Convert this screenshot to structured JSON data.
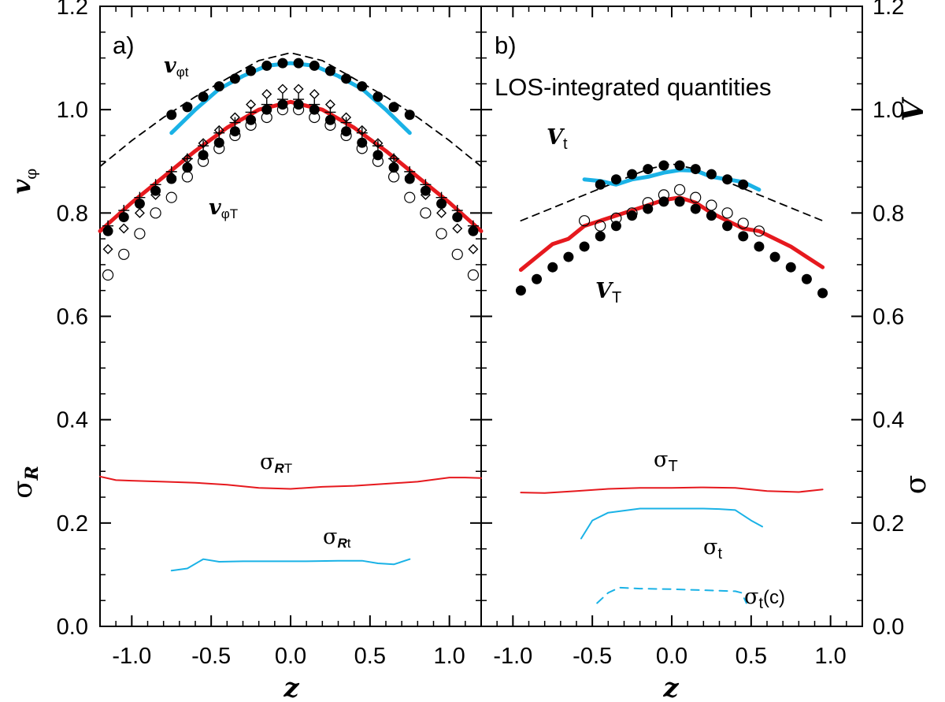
{
  "chart_data": [
    {
      "panel": "a)",
      "type": "line",
      "title": "",
      "xlabel": "z",
      "ylabel_top": "vφ",
      "ylabel_bottom": "σR",
      "xlim": [
        -1.2,
        1.2
      ],
      "ylim": [
        0.0,
        1.2
      ],
      "x_ticks": [
        "-1.0",
        "-0.5",
        "0.0",
        "0.5",
        "1.0"
      ],
      "x_tick_values": [
        -1.0,
        -0.5,
        0.0,
        0.5,
        1.0
      ],
      "y_ticks": [
        "0.0",
        "0.2",
        "0.4",
        "0.6",
        "0.8",
        "1.0",
        "1.2"
      ],
      "y_tick_values": [
        0.0,
        0.2,
        0.4,
        0.6,
        0.8,
        1.0,
        1.2
      ],
      "series": [
        {
          "name": "vφt model (dashed)",
          "color": "#000000",
          "style": "dashed",
          "x": [
            -1.2,
            -1.0,
            -0.8,
            -0.6,
            -0.4,
            -0.2,
            0.0,
            0.2,
            0.4,
            0.6,
            0.8,
            1.0,
            1.2
          ],
          "y": [
            0.89,
            0.94,
            0.985,
            1.025,
            1.06,
            1.095,
            1.11,
            1.095,
            1.06,
            1.025,
            0.985,
            0.94,
            0.89
          ]
        },
        {
          "name": "vφt",
          "color": "#1ab2e6",
          "style": "thick",
          "x": [
            -0.75,
            -0.6,
            -0.45,
            -0.3,
            -0.15,
            0.0,
            0.15,
            0.3,
            0.45,
            0.6,
            0.75
          ],
          "y": [
            0.955,
            1.0,
            1.04,
            1.065,
            1.085,
            1.09,
            1.085,
            1.065,
            1.04,
            1.0,
            0.955
          ]
        },
        {
          "name": "vφt filled",
          "color": "#000000",
          "style": "filled-circles",
          "x": [
            -0.75,
            -0.65,
            -0.55,
            -0.45,
            -0.35,
            -0.25,
            -0.15,
            -0.05,
            0.05,
            0.15,
            0.25,
            0.35,
            0.45,
            0.55,
            0.65,
            0.75
          ],
          "y": [
            0.99,
            1.005,
            1.025,
            1.045,
            1.06,
            1.075,
            1.085,
            1.09,
            1.09,
            1.085,
            1.075,
            1.06,
            1.045,
            1.025,
            1.005,
            0.99
          ]
        },
        {
          "name": "vφT",
          "color": "#e6191e",
          "style": "thick",
          "x": [
            -1.2,
            -1.0,
            -0.8,
            -0.6,
            -0.4,
            -0.2,
            0.0,
            0.2,
            0.4,
            0.6,
            0.8,
            1.0,
            1.2
          ],
          "y": [
            0.765,
            0.82,
            0.87,
            0.92,
            0.965,
            1.0,
            1.015,
            1.0,
            0.965,
            0.92,
            0.87,
            0.82,
            0.765
          ]
        },
        {
          "name": "vφT filled",
          "color": "#000000",
          "style": "filled-circles",
          "x": [
            -1.15,
            -1.05,
            -0.95,
            -0.85,
            -0.75,
            -0.65,
            -0.55,
            -0.45,
            -0.35,
            -0.25,
            -0.15,
            -0.05,
            0.05,
            0.15,
            0.25,
            0.35,
            0.45,
            0.55,
            0.65,
            0.75,
            0.85,
            0.95,
            1.05,
            1.15
          ],
          "y": [
            0.765,
            0.792,
            0.818,
            0.843,
            0.866,
            0.888,
            0.912,
            0.936,
            0.958,
            0.98,
            1.0,
            1.01,
            1.01,
            1.0,
            0.98,
            0.958,
            0.936,
            0.912,
            0.888,
            0.866,
            0.843,
            0.818,
            0.792,
            0.765
          ]
        },
        {
          "name": "open circles",
          "color": "#000000",
          "style": "open-circles",
          "x": [
            -1.15,
            -1.05,
            -0.95,
            -0.85,
            -0.75,
            -0.65,
            -0.55,
            -0.45,
            -0.35,
            -0.25,
            -0.15,
            -0.05,
            0.05,
            0.15,
            0.25,
            0.35,
            0.45,
            0.55,
            0.65,
            0.75,
            0.85,
            0.95,
            1.05,
            1.15
          ],
          "y": [
            0.68,
            0.72,
            0.76,
            0.8,
            0.83,
            0.87,
            0.9,
            0.925,
            0.95,
            0.97,
            0.985,
            1.0,
            1.0,
            0.985,
            0.97,
            0.95,
            0.925,
            0.9,
            0.87,
            0.83,
            0.8,
            0.76,
            0.72,
            0.68
          ]
        },
        {
          "name": "diamonds",
          "color": "#000000",
          "style": "open-diamonds",
          "x": [
            -1.15,
            -1.05,
            -0.95,
            -0.85,
            -0.75,
            -0.65,
            -0.55,
            -0.45,
            -0.35,
            -0.25,
            -0.15,
            -0.05,
            0.05,
            0.15,
            0.25,
            0.35,
            0.45,
            0.55,
            0.65,
            0.75,
            0.85,
            0.95,
            1.05,
            1.15
          ],
          "y": [
            0.73,
            0.77,
            0.8,
            0.835,
            0.87,
            0.905,
            0.935,
            0.96,
            0.985,
            1.01,
            1.03,
            1.04,
            1.04,
            1.03,
            1.01,
            0.985,
            0.96,
            0.935,
            0.905,
            0.87,
            0.835,
            0.8,
            0.77,
            0.73
          ]
        },
        {
          "name": "plus",
          "color": "#000000",
          "style": "plus",
          "x": [
            -1.15,
            -1.05,
            -0.95,
            -0.85,
            -0.75,
            -0.65,
            -0.55,
            -0.45,
            -0.35,
            -0.25,
            -0.15,
            -0.05,
            0.05,
            0.15,
            0.25,
            0.35,
            0.45,
            0.55,
            0.65,
            0.75,
            0.85,
            0.95,
            1.05,
            1.15
          ],
          "y": [
            0.775,
            0.805,
            0.83,
            0.855,
            0.88,
            0.905,
            0.93,
            0.955,
            0.975,
            0.995,
            1.01,
            1.02,
            1.02,
            1.01,
            0.995,
            0.975,
            0.955,
            0.93,
            0.905,
            0.88,
            0.855,
            0.83,
            0.805,
            0.775
          ]
        },
        {
          "name": "σRT",
          "color": "#e6191e",
          "style": "thin",
          "x": [
            -1.2,
            -1.1,
            -1.0,
            -0.8,
            -0.6,
            -0.4,
            -0.2,
            0.0,
            0.2,
            0.4,
            0.6,
            0.8,
            1.0,
            1.1,
            1.2
          ],
          "y": [
            0.29,
            0.283,
            0.282,
            0.28,
            0.278,
            0.274,
            0.268,
            0.266,
            0.27,
            0.272,
            0.276,
            0.28,
            0.288,
            0.288,
            0.287
          ]
        },
        {
          "name": "σRt",
          "color": "#1ab2e6",
          "style": "thin",
          "x": [
            -0.75,
            -0.65,
            -0.55,
            -0.45,
            -0.3,
            -0.1,
            0.1,
            0.3,
            0.45,
            0.55,
            0.65,
            0.75
          ],
          "y": [
            0.108,
            0.112,
            0.13,
            0.125,
            0.126,
            0.126,
            0.126,
            0.127,
            0.127,
            0.122,
            0.12,
            0.13
          ]
        }
      ],
      "labels": {
        "vphi_t": {
          "main": "v",
          "sub": "φt"
        },
        "vphi_T": {
          "main": "v",
          "sub": "φT"
        },
        "sigma_RT": {
          "main": "σ",
          "bold_sub": "R",
          "sub": "T"
        },
        "sigma_Rt": {
          "main": "σ",
          "bold_sub": "R",
          "sub": "t"
        }
      },
      "axis_titles": {
        "y_top": {
          "main": "v",
          "sub": "φ"
        },
        "y_bottom": {
          "main": "σ",
          "sub": "R"
        },
        "x": "z"
      }
    },
    {
      "panel": "b)",
      "type": "line",
      "title": "LOS-integrated quantities",
      "xlabel": "z",
      "ylabel_top": "V",
      "ylabel_bottom": "σ",
      "xlim": [
        -1.2,
        1.2
      ],
      "ylim": [
        0.0,
        1.2
      ],
      "x_ticks": [
        "-1.0",
        "-0.5",
        "0.0",
        "0.5",
        "1.0"
      ],
      "x_tick_values": [
        -1.0,
        -0.5,
        0.0,
        0.5,
        1.0
      ],
      "y_ticks": [
        "0.0",
        "0.2",
        "0.4",
        "0.6",
        "0.8",
        "1.0",
        "1.2"
      ],
      "y_tick_values": [
        0.0,
        0.2,
        0.4,
        0.6,
        0.8,
        1.0,
        1.2
      ],
      "series": [
        {
          "name": "Vt model (dashed)",
          "color": "#000000",
          "style": "dashed",
          "x": [
            -0.95,
            -0.75,
            -0.55,
            -0.35,
            -0.15,
            0.0,
            0.15,
            0.35,
            0.55,
            0.75,
            0.95
          ],
          "y": [
            0.785,
            0.81,
            0.835,
            0.86,
            0.885,
            0.895,
            0.885,
            0.86,
            0.835,
            0.81,
            0.785
          ]
        },
        {
          "name": "Vt",
          "color": "#1ab2e6",
          "style": "thick",
          "x": [
            -0.55,
            -0.45,
            -0.35,
            -0.25,
            -0.15,
            -0.05,
            0.05,
            0.15,
            0.25,
            0.35,
            0.45,
            0.55
          ],
          "y": [
            0.865,
            0.862,
            0.855,
            0.865,
            0.87,
            0.878,
            0.883,
            0.882,
            0.87,
            0.865,
            0.86,
            0.845
          ]
        },
        {
          "name": "Vt filled",
          "color": "#000000",
          "style": "filled-circles",
          "x": [
            -0.45,
            -0.35,
            -0.25,
            -0.15,
            -0.05,
            0.05,
            0.15,
            0.25,
            0.35,
            0.45
          ],
          "y": [
            0.855,
            0.865,
            0.875,
            0.885,
            0.892,
            0.892,
            0.885,
            0.875,
            0.865,
            0.855
          ]
        },
        {
          "name": "VT",
          "color": "#e6191e",
          "style": "thick",
          "x": [
            -0.95,
            -0.85,
            -0.75,
            -0.65,
            -0.55,
            -0.45,
            -0.35,
            -0.25,
            -0.15,
            -0.05,
            0.05,
            0.15,
            0.25,
            0.35,
            0.45,
            0.55,
            0.65,
            0.75,
            0.85,
            0.95
          ],
          "y": [
            0.69,
            0.715,
            0.74,
            0.75,
            0.775,
            0.785,
            0.795,
            0.805,
            0.815,
            0.825,
            0.83,
            0.82,
            0.8,
            0.785,
            0.77,
            0.765,
            0.75,
            0.735,
            0.715,
            0.695
          ]
        },
        {
          "name": "VT filled",
          "color": "#000000",
          "style": "filled-circles",
          "x": [
            -0.95,
            -0.85,
            -0.75,
            -0.65,
            -0.55,
            -0.45,
            -0.35,
            -0.25,
            -0.15,
            -0.05,
            0.05,
            0.15,
            0.25,
            0.35,
            0.45,
            0.55,
            0.65,
            0.75,
            0.85,
            0.95
          ],
          "y": [
            0.65,
            0.672,
            0.695,
            0.715,
            0.735,
            0.755,
            0.775,
            0.795,
            0.808,
            0.822,
            0.822,
            0.808,
            0.795,
            0.775,
            0.755,
            0.735,
            0.715,
            0.695,
            0.672,
            0.645
          ]
        },
        {
          "name": "open circles",
          "color": "#000000",
          "style": "open-circles",
          "x": [
            -0.55,
            -0.45,
            -0.35,
            -0.25,
            -0.15,
            -0.05,
            0.05,
            0.15,
            0.25,
            0.35,
            0.45,
            0.55
          ],
          "y": [
            0.785,
            0.775,
            0.79,
            0.8,
            0.82,
            0.835,
            0.845,
            0.83,
            0.815,
            0.8,
            0.78,
            0.765
          ]
        },
        {
          "name": "σT",
          "color": "#e6191e",
          "style": "thin",
          "x": [
            -0.95,
            -0.8,
            -0.6,
            -0.4,
            -0.2,
            0.0,
            0.2,
            0.4,
            0.6,
            0.8,
            0.95
          ],
          "y": [
            0.259,
            0.258,
            0.262,
            0.266,
            0.268,
            0.268,
            0.269,
            0.268,
            0.262,
            0.26,
            0.265
          ]
        },
        {
          "name": "σt",
          "color": "#1ab2e6",
          "style": "thin",
          "x": [
            -0.57,
            -0.5,
            -0.4,
            -0.3,
            -0.2,
            -0.1,
            0.0,
            0.1,
            0.2,
            0.3,
            0.4,
            0.5,
            0.57
          ],
          "y": [
            0.17,
            0.205,
            0.22,
            0.224,
            0.228,
            0.228,
            0.228,
            0.228,
            0.228,
            0.227,
            0.225,
            0.205,
            0.193
          ]
        },
        {
          "name": "σt(c)",
          "color": "#1ab2e6",
          "style": "thin-dashed",
          "x": [
            -0.47,
            -0.4,
            -0.33,
            -0.2,
            0.0,
            0.2,
            0.4,
            0.44,
            0.47
          ],
          "y": [
            0.045,
            0.065,
            0.075,
            0.073,
            0.072,
            0.07,
            0.068,
            0.065,
            0.045
          ]
        }
      ],
      "labels": {
        "V_t": {
          "main": "V",
          "sub": "t"
        },
        "V_T": {
          "main": "V",
          "sub": "T"
        },
        "sigma_T": {
          "main": "σ",
          "sub": "T"
        },
        "sigma_t": {
          "main": "σ",
          "sub": "t"
        },
        "sigma_tc": {
          "main": "σ",
          "sub": "t",
          "suffix": "(c)"
        }
      },
      "axis_titles": {
        "y_right_top": "V",
        "y_right_bottom": "σ",
        "x": "z"
      }
    }
  ]
}
